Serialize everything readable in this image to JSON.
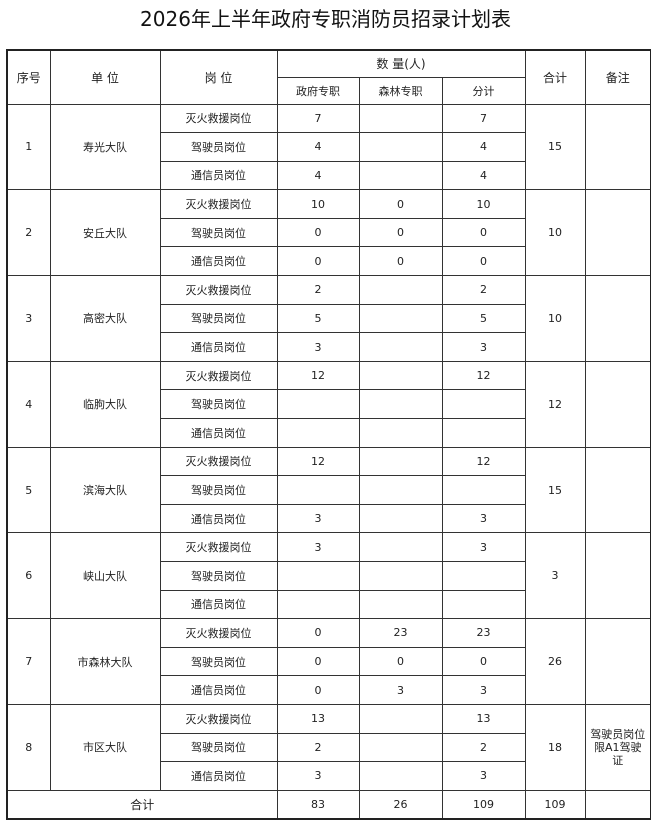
{
  "title": "2026年上半年政府专职消防员招录计划表",
  "headers": {
    "index": "序号",
    "unit": "单 位",
    "position": "岗 位",
    "quantity": "数 量(人)",
    "gov": "政府专职",
    "forest": "森林专职",
    "subtotal": "分计",
    "total": "合计",
    "note": "备注"
  },
  "groups": [
    {
      "index": "1",
      "unit": "寿光大队",
      "total": "15",
      "note": "",
      "rows": [
        {
          "position": "灭火救援岗位",
          "gov": "7",
          "forest": "",
          "subtotal": "7"
        },
        {
          "position": "驾驶员岗位",
          "gov": "4",
          "forest": "",
          "subtotal": "4"
        },
        {
          "position": "通信员岗位",
          "gov": "4",
          "forest": "",
          "subtotal": "4"
        }
      ]
    },
    {
      "index": "2",
      "unit": "安丘大队",
      "total": "10",
      "note": "",
      "rows": [
        {
          "position": "灭火救援岗位",
          "gov": "10",
          "forest": "0",
          "subtotal": "10"
        },
        {
          "position": "驾驶员岗位",
          "gov": "0",
          "forest": "0",
          "subtotal": "0"
        },
        {
          "position": "通信员岗位",
          "gov": "0",
          "forest": "0",
          "subtotal": "0"
        }
      ]
    },
    {
      "index": "3",
      "unit": "高密大队",
      "total": "10",
      "note": "",
      "rows": [
        {
          "position": "灭火救援岗位",
          "gov": "2",
          "forest": "",
          "subtotal": "2"
        },
        {
          "position": "驾驶员岗位",
          "gov": "5",
          "forest": "",
          "subtotal": "5"
        },
        {
          "position": "通信员岗位",
          "gov": "3",
          "forest": "",
          "subtotal": "3"
        }
      ]
    },
    {
      "index": "4",
      "unit": "临朐大队",
      "total": "12",
      "note": "",
      "rows": [
        {
          "position": "灭火救援岗位",
          "gov": "12",
          "forest": "",
          "subtotal": "12"
        },
        {
          "position": "驾驶员岗位",
          "gov": "",
          "forest": "",
          "subtotal": ""
        },
        {
          "position": "通信员岗位",
          "gov": "",
          "forest": "",
          "subtotal": ""
        }
      ]
    },
    {
      "index": "5",
      "unit": "滨海大队",
      "total": "15",
      "note": "",
      "rows": [
        {
          "position": "灭火救援岗位",
          "gov": "12",
          "forest": "",
          "subtotal": "12"
        },
        {
          "position": "驾驶员岗位",
          "gov": "",
          "forest": "",
          "subtotal": ""
        },
        {
          "position": "通信员岗位",
          "gov": "3",
          "forest": "",
          "subtotal": "3"
        }
      ]
    },
    {
      "index": "6",
      "unit": "峡山大队",
      "total": "3",
      "note": "",
      "rows": [
        {
          "position": "灭火救援岗位",
          "gov": "3",
          "forest": "",
          "subtotal": "3"
        },
        {
          "position": "驾驶员岗位",
          "gov": "",
          "forest": "",
          "subtotal": ""
        },
        {
          "position": "通信员岗位",
          "gov": "",
          "forest": "",
          "subtotal": ""
        }
      ]
    },
    {
      "index": "7",
      "unit": "市森林大队",
      "total": "26",
      "note": "",
      "rows": [
        {
          "position": "灭火救援岗位",
          "gov": "0",
          "forest": "23",
          "subtotal": "23"
        },
        {
          "position": "驾驶员岗位",
          "gov": "0",
          "forest": "0",
          "subtotal": "0"
        },
        {
          "position": "通信员岗位",
          "gov": "0",
          "forest": "3",
          "subtotal": "3"
        }
      ]
    },
    {
      "index": "8",
      "unit": "市区大队",
      "total": "18",
      "note": "驾驶员岗位限A1驾驶证",
      "rows": [
        {
          "position": "灭火救援岗位",
          "gov": "13",
          "forest": "",
          "subtotal": "13"
        },
        {
          "position": "驾驶员岗位",
          "gov": "2",
          "forest": "",
          "subtotal": "2"
        },
        {
          "position": "通信员岗位",
          "gov": "3",
          "forest": "",
          "subtotal": "3"
        }
      ]
    }
  ],
  "summary": {
    "label": "合计",
    "gov": "83",
    "forest": "26",
    "subtotal": "109",
    "total": "109",
    "note": ""
  }
}
